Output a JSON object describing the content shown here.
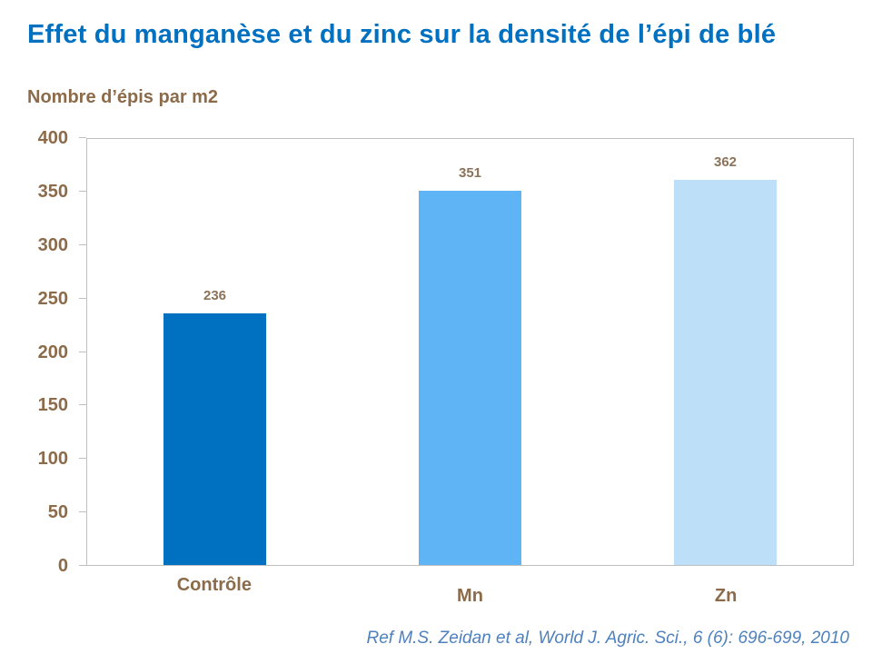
{
  "title": "Effet du manganèse et du zinc sur la densité de l’épi de blé",
  "y_axis_title": "Nombre d’épis par m2",
  "reference": "Ref M.S. Zeidan et al, World J. Agric. Sci., 6 (6): 696-699, 2010",
  "colors": {
    "title_text": "#0070C0",
    "axis_text": "#8C6B4A",
    "value_label_text": "#8C7258",
    "reference_text": "#4F81BD",
    "axis_line": "#BFBFBF",
    "background": "#FFFFFF"
  },
  "chart_data": {
    "type": "bar",
    "title": "Effet du manganèse et du zinc sur la densité de l’épi de blé",
    "ylabel": "Nombre d’épis par m2",
    "xlabel": "",
    "categories": [
      "Contrôle",
      "Mn",
      "Zn"
    ],
    "values": [
      236,
      351,
      362
    ],
    "bar_colors": [
      "#0070C0",
      "#5FB4F5",
      "#BDE0F8"
    ],
    "ylim": [
      0,
      400
    ],
    "yticks": [
      0,
      50,
      100,
      150,
      200,
      250,
      300,
      350,
      400
    ],
    "grid": false,
    "legend": "none",
    "annotation": "Ref M.S. Zeidan et al, World J. Agric. Sci., 6 (6): 696-699, 2010"
  }
}
